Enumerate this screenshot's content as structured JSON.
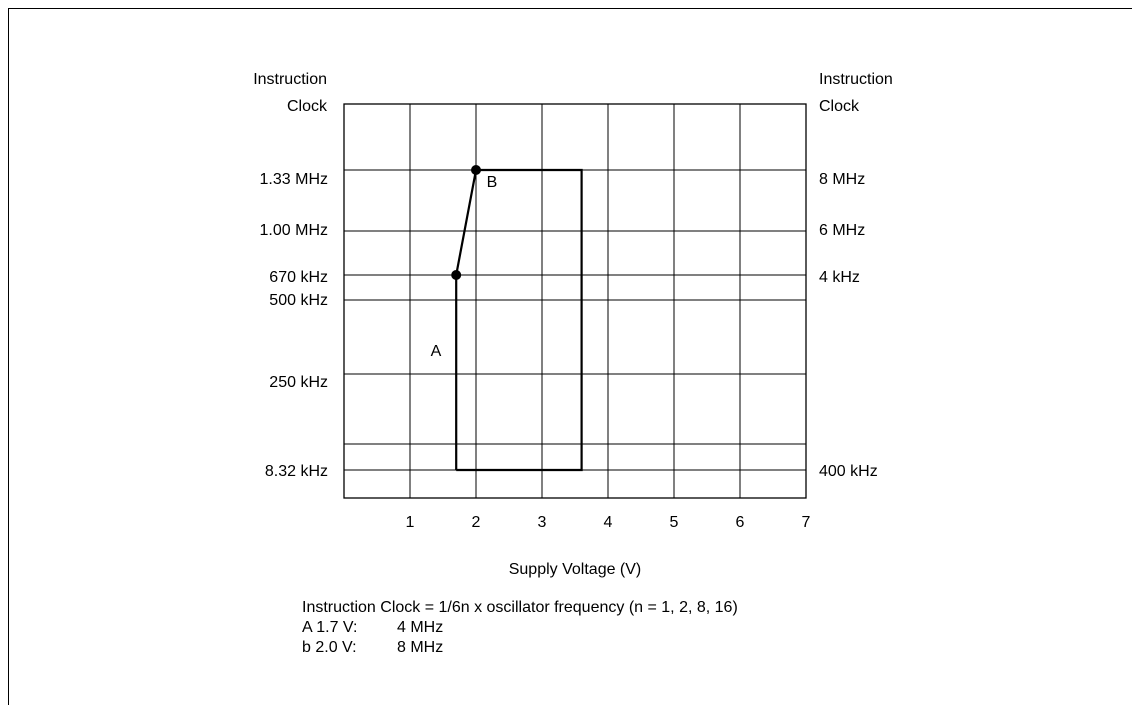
{
  "chart_data": {
    "type": "line",
    "xlabel": "Supply Voltage (V)",
    "x_ticks": [
      "1",
      "2",
      "3",
      "4",
      "5",
      "6",
      "7"
    ],
    "xlim": [
      0,
      7
    ],
    "left_axis": {
      "title_line1": "Instruction",
      "title_line2": "Clock",
      "ticks": [
        "1.33 MHz",
        "1.00 MHz",
        "670 kHz",
        "500 kHz",
        "250 kHz",
        "8.32 kHz"
      ]
    },
    "right_axis": {
      "title_line1": "Instruction",
      "title_line2": "Clock",
      "ticks": [
        "8 MHz",
        "6 MHz",
        "4 kHz",
        "400 kHz"
      ]
    },
    "series": [
      {
        "points": [
          {
            "x": 1.7,
            "y": "8.32 kHz"
          },
          {
            "x": 1.7,
            "y": "670 kHz"
          },
          {
            "x": 2.0,
            "y": "1.33 MHz"
          },
          {
            "x": 3.6,
            "y": "1.33 MHz"
          },
          {
            "x": 3.6,
            "y": "8.32 kHz"
          },
          {
            "x": 1.7,
            "y": "8.32 kHz"
          }
        ]
      }
    ],
    "markers": [
      {
        "x": 1.7,
        "y": "670 kHz"
      },
      {
        "x": 2.0,
        "y": "1.33 MHz"
      }
    ],
    "annotations": [
      {
        "text": "A"
      },
      {
        "text": "B"
      }
    ],
    "grid": true
  },
  "notes": {
    "formula": "Instruction Clock = 1/6n x oscillator frequency (n = 1, 2, 8, 16)",
    "rows": [
      {
        "key": "A 1.7 V:",
        "value": "4 MHz"
      },
      {
        "key": "b 2.0 V:",
        "value": "8 MHz"
      }
    ]
  }
}
